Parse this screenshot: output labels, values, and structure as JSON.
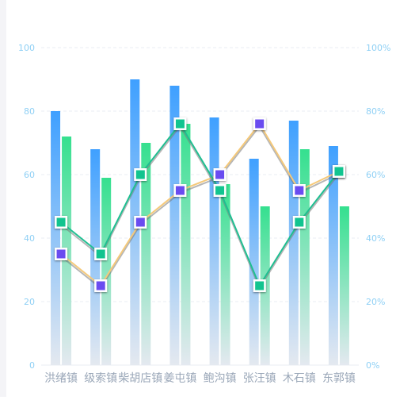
{
  "chart_data": {
    "type": "bar",
    "categories": [
      "洪绪镇",
      "级索镇",
      "柴胡店镇",
      "姜屯镇",
      "鲍沟镇",
      "张汪镇",
      "木石镇",
      "东郭镇"
    ],
    "series": [
      {
        "type": "bar",
        "values": [
          80,
          68,
          90,
          88,
          78,
          65,
          77,
          69
        ],
        "color": "#3fa0ff",
        "fade_to": "#e4e9f0"
      },
      {
        "type": "bar",
        "values": [
          72,
          59,
          70,
          76,
          57,
          50,
          68,
          50
        ],
        "color": "#35e08f",
        "fade_to": "#e4e9f0"
      },
      {
        "type": "line",
        "axis": "right",
        "values": [
          35,
          25,
          45,
          55,
          60,
          76,
          55,
          61
        ],
        "line_color": "#f5c97a",
        "marker_fill": "#6a4cf0",
        "marker": "square"
      },
      {
        "type": "line",
        "axis": "right",
        "values": [
          45,
          35,
          60,
          76,
          55,
          25,
          45,
          61
        ],
        "line_color": "#1fbf91",
        "marker_fill": "#12c48f",
        "marker": "square"
      }
    ],
    "y_left": {
      "min": 0,
      "max": 100,
      "ticks": [
        "0",
        "20",
        "40",
        "60",
        "80",
        "100"
      ]
    },
    "y_right": {
      "min": 0,
      "max": 100,
      "ticks": [
        "0%",
        "20%",
        "40%",
        "60%",
        "80%",
        "100%"
      ]
    },
    "grid": true,
    "axis_label_color": "#8fd0f5",
    "category_label_color": "#9aa7b8",
    "grid_color": "#e9edf3",
    "title": "",
    "xlabel": "",
    "ylabel": ""
  }
}
